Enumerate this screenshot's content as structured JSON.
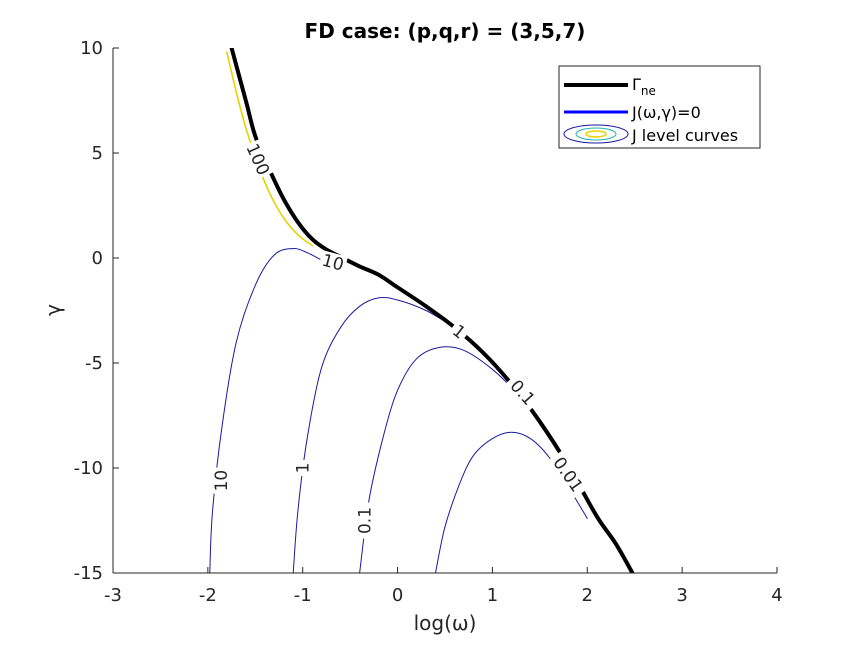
{
  "chart_data": {
    "type": "line",
    "title": "FD case: (p,q,r) = (3,5,7)",
    "xlabel": "log(ω)",
    "ylabel": "γ",
    "xlim": [
      -3,
      4
    ],
    "ylim": [
      -15,
      10
    ],
    "xticks": [
      "-3",
      "-2",
      "-1",
      "0",
      "1",
      "2",
      "3",
      "4"
    ],
    "yticks": [
      "10",
      "5",
      "0",
      "-5",
      "-10",
      "-15"
    ],
    "grid": false,
    "legend_position": "top-right",
    "legend": [
      {
        "label_main": "Γ",
        "label_sub": "ne",
        "color": "#000000",
        "style": "thick-line"
      },
      {
        "label": "J(ω,γ)=0",
        "color": "#0000ff",
        "style": "line"
      },
      {
        "label": "J level curves",
        "color": "#1a1aa0",
        "style": "contour-swatch"
      }
    ],
    "series": [
      {
        "name": "Γne",
        "color": "#000000",
        "x": [
          -1.75,
          -1.6,
          -1.5,
          -1.35,
          -1.2,
          -1.05,
          -0.9,
          -0.75,
          -0.6,
          -0.4,
          -0.2,
          0.0,
          0.3,
          0.6,
          0.9,
          1.2,
          1.5,
          1.8,
          2.1,
          2.3,
          2.5
        ],
        "y": [
          10,
          7.5,
          5.8,
          4.2,
          2.8,
          1.7,
          0.9,
          0.4,
          0.05,
          -0.4,
          -0.8,
          -1.4,
          -2.3,
          -3.3,
          -4.5,
          -6.0,
          -7.8,
          -9.9,
          -12.3,
          -13.6,
          -15.2
        ]
      },
      {
        "name": "J level curve (yellow)",
        "color": "#e6d200",
        "x": [
          -1.8,
          -1.65,
          -1.5,
          -1.35,
          -1.2,
          -1.05,
          -0.9
        ],
        "y": [
          9.8,
          7.0,
          4.8,
          3.1,
          1.9,
          1.1,
          0.6
        ]
      },
      {
        "name": "contour 10",
        "color": "#1a1aa0",
        "x": [
          -1.98,
          -1.95,
          -1.85,
          -1.7,
          -1.5,
          -1.3,
          -1.1,
          -0.95,
          -0.8,
          -0.6
        ],
        "y": [
          -15,
          -12,
          -8,
          -4,
          -1.3,
          0.15,
          0.45,
          0.25,
          -0.1,
          -0.5
        ]
      },
      {
        "name": "contour 1",
        "color": "#1a1aa0",
        "x": [
          -1.1,
          -1.05,
          -0.95,
          -0.8,
          -0.6,
          -0.4,
          -0.2,
          0.0,
          0.3,
          0.6
        ],
        "y": [
          -15,
          -12,
          -8.5,
          -5.2,
          -3.3,
          -2.3,
          -1.9,
          -2.0,
          -2.5,
          -3.3
        ]
      },
      {
        "name": "contour 0.1",
        "color": "#1a1aa0",
        "x": [
          -0.4,
          -0.3,
          -0.15,
          0.0,
          0.2,
          0.45,
          0.7,
          1.0,
          1.3,
          1.4
        ],
        "y": [
          -15,
          -11.5,
          -8.5,
          -6.3,
          -4.8,
          -4.25,
          -4.4,
          -5.3,
          -6.6,
          -7.0
        ]
      },
      {
        "name": "contour 0.01",
        "color": "#1a1aa0",
        "x": [
          0.4,
          0.5,
          0.65,
          0.8,
          1.0,
          1.2,
          1.4,
          1.6,
          1.8,
          2.0
        ],
        "y": [
          -15,
          -12.8,
          -10.8,
          -9.4,
          -8.6,
          -8.3,
          -8.6,
          -9.5,
          -10.9,
          -12.4
        ]
      }
    ],
    "contour_labels": [
      {
        "text": "100",
        "x": -1.47,
        "y": 4.7,
        "angle": 66
      },
      {
        "text": "10",
        "x": -0.68,
        "y": -0.2,
        "angle": 15
      },
      {
        "text": "1",
        "x": 0.65,
        "y": -3.5,
        "angle": 38
      },
      {
        "text": "0.1",
        "x": 1.32,
        "y": -6.4,
        "angle": 48
      },
      {
        "text": "0.01",
        "x": 1.8,
        "y": -10.3,
        "angle": 55
      },
      {
        "text": "10",
        "x": -1.86,
        "y": -10.6,
        "angle": -90
      },
      {
        "text": "1",
        "x": -1.0,
        "y": -10.0,
        "angle": -90
      },
      {
        "text": "0.1",
        "x": -0.35,
        "y": -12.5,
        "angle": -90
      }
    ]
  }
}
